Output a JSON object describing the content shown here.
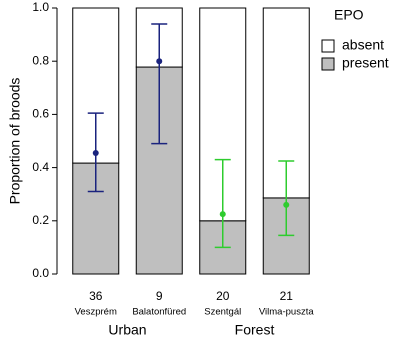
{
  "chart_data": {
    "type": "stacked_bar",
    "ylabel": "Proportion of broods",
    "categories": [
      "Veszprém",
      "Balatonfüred",
      "Szentgál",
      "Vilma-puszta"
    ],
    "sample_sizes": [
      "36",
      "9",
      "20",
      "21"
    ],
    "groups": [
      "Urban",
      "Forest"
    ],
    "series": [
      {
        "name": "present",
        "color": "#bfbfbf",
        "values": [
          0.417,
          0.778,
          0.2,
          0.286
        ]
      },
      {
        "name": "absent",
        "color": "#ffffff",
        "values": [
          0.583,
          0.222,
          0.8,
          0.714
        ]
      }
    ],
    "estimates": [
      0.455,
      0.8,
      0.225,
      0.26
    ],
    "ci_low": [
      0.31,
      0.49,
      0.1,
      0.145
    ],
    "ci_high": [
      0.605,
      0.94,
      0.43,
      0.425
    ],
    "estimate_colors": [
      "#1a237e",
      "#1a237e",
      "#2ecc2e",
      "#2ecc2e"
    ],
    "legend_title": "EPO",
    "legend_position": "right",
    "ylim": [
      0,
      1
    ],
    "yticks": [
      {
        "value": 0,
        "label": "0.0"
      },
      0.2,
      0.4,
      0.6,
      0.8,
      {
        "value": 1,
        "label": "1.0"
      }
    ],
    "grid": false
  }
}
